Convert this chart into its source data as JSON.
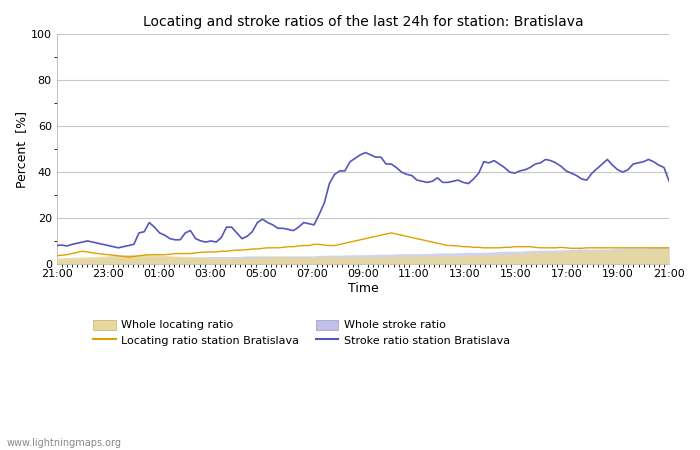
{
  "title": "Locating and stroke ratios of the last 24h for station: Bratislava",
  "xlabel": "Time",
  "ylabel": "Percent  [%]",
  "xlim": [
    0,
    24
  ],
  "ylim": [
    0,
    100
  ],
  "yticks_major": [
    0,
    20,
    40,
    60,
    80,
    100
  ],
  "yticks_minor": [
    10,
    30,
    50,
    70,
    90
  ],
  "xtick_labels": [
    "21:00",
    "23:00",
    "01:00",
    "03:00",
    "05:00",
    "07:00",
    "09:00",
    "11:00",
    "13:00",
    "15:00",
    "17:00",
    "19:00",
    "21:00"
  ],
  "background_color": "#ffffff",
  "plot_bg_color": "#ffffff",
  "grid_color": "#c8c8c8",
  "watermark": "www.lightningmaps.org",
  "legend_items": [
    {
      "label": "Whole locating ratio",
      "color": "#e8d89a",
      "type": "fill"
    },
    {
      "label": "Locating ratio station Bratislava",
      "color": "#e0a000",
      "type": "line"
    },
    {
      "label": "Whole stroke ratio",
      "color": "#c0c0e8",
      "type": "fill"
    },
    {
      "label": "Stroke ratio station Bratislava",
      "color": "#5555bb",
      "type": "line"
    }
  ],
  "whole_locating_ratio": [
    2.5,
    2.8,
    3.0,
    3.2,
    3.5,
    4.0,
    4.2,
    4.0,
    3.8,
    3.5,
    3.2,
    3.0,
    2.8,
    2.5,
    2.5,
    2.8,
    3.0,
    3.2,
    3.2,
    3.0,
    3.0,
    3.2,
    3.2,
    3.0,
    3.0,
    3.0,
    3.2,
    3.2,
    3.2,
    3.5,
    3.5,
    3.5,
    3.5,
    3.8,
    4.0,
    4.2,
    4.5,
    4.8,
    5.0,
    5.2,
    5.5,
    5.5,
    5.8,
    6.0,
    6.0,
    6.2,
    6.5,
    6.5,
    7.0
  ],
  "locating_ratio_station": [
    3.5,
    3.8,
    4.0,
    4.5,
    5.0,
    5.5,
    5.2,
    4.8,
    4.5,
    4.2,
    4.0,
    3.8,
    3.5,
    3.2,
    3.0,
    3.2,
    3.5,
    3.8,
    4.0,
    4.0,
    4.0,
    4.0,
    4.2,
    4.5,
    4.5,
    4.5,
    4.5,
    4.8,
    5.0,
    5.2,
    5.2,
    5.2,
    5.5,
    5.5,
    5.8,
    6.0,
    6.0,
    6.2,
    6.5,
    6.5,
    6.8,
    7.0,
    7.0,
    7.0,
    7.2,
    7.5,
    7.5,
    7.8,
    8.0,
    8.0,
    8.5,
    8.5,
    8.2,
    8.0,
    8.0,
    8.5,
    9.0,
    9.5,
    10.0,
    10.5,
    11.0,
    11.5,
    12.0,
    12.5,
    13.0,
    13.5,
    13.0,
    12.5,
    12.0,
    11.5,
    11.0,
    10.5,
    10.0,
    9.5,
    9.0,
    8.5,
    8.0,
    8.0,
    7.8,
    7.5,
    7.5,
    7.2,
    7.2,
    7.0,
    7.0,
    7.0,
    7.0,
    7.2,
    7.2,
    7.5,
    7.5,
    7.5,
    7.5,
    7.2,
    7.0,
    7.0,
    7.0,
    7.0,
    7.2,
    7.0,
    6.8,
    6.8,
    6.8,
    7.0,
    7.0,
    7.0,
    7.0,
    7.0,
    7.0,
    7.0,
    7.0,
    7.0,
    7.0,
    7.0,
    7.0,
    7.0,
    7.0,
    7.0,
    7.0,
    7.0
  ],
  "whole_stroke_ratio": [
    1.5,
    1.8,
    2.0,
    2.2,
    2.5,
    2.8,
    3.0,
    3.0,
    3.0,
    3.0,
    3.0,
    3.0,
    3.2,
    3.2,
    3.2,
    3.5,
    3.5,
    3.5,
    3.5,
    3.5,
    3.5,
    3.8,
    3.8,
    4.0,
    4.0,
    4.2,
    4.2,
    4.5,
    4.5,
    4.5,
    4.8,
    4.8,
    5.0,
    5.0,
    5.2,
    5.5,
    5.5,
    5.8,
    6.0,
    6.0,
    6.2,
    6.5,
    6.5,
    6.5,
    6.8,
    7.0,
    7.0,
    7.2,
    7.5
  ],
  "stroke_ratio_station": [
    8.0,
    8.2,
    7.8,
    8.5,
    9.0,
    9.5,
    10.0,
    9.5,
    9.0,
    8.5,
    8.0,
    7.5,
    7.0,
    7.5,
    8.0,
    8.5,
    13.5,
    14.0,
    18.0,
    16.0,
    13.5,
    12.5,
    11.0,
    10.5,
    10.5,
    13.5,
    14.5,
    11.0,
    10.0,
    9.5,
    10.0,
    9.5,
    11.5,
    16.0,
    16.0,
    13.5,
    11.0,
    12.0,
    14.0,
    18.0,
    19.5,
    18.0,
    17.0,
    15.5,
    15.5,
    15.0,
    14.5,
    16.0,
    18.0,
    17.5,
    17.0,
    21.5,
    26.5,
    35.0,
    39.0,
    40.5,
    40.5,
    44.5,
    46.0,
    47.5,
    48.5,
    47.5,
    46.5,
    46.5,
    43.5,
    43.5,
    42.0,
    40.0,
    39.0,
    38.5,
    36.5,
    36.0,
    35.5,
    36.0,
    37.5,
    35.5,
    35.5,
    36.0,
    36.5,
    35.5,
    35.0,
    37.0,
    39.5,
    44.5,
    44.0,
    45.0,
    43.5,
    42.0,
    40.0,
    39.5,
    40.5,
    41.0,
    42.0,
    43.5,
    44.0,
    45.5,
    45.0,
    44.0,
    42.5,
    40.5,
    39.5,
    38.5,
    37.0,
    36.5,
    39.5,
    41.5,
    43.5,
    45.5,
    43.0,
    41.0,
    40.0,
    41.0,
    43.5,
    44.0,
    44.5,
    45.5,
    44.5,
    43.0,
    42.0,
    36.0
  ]
}
